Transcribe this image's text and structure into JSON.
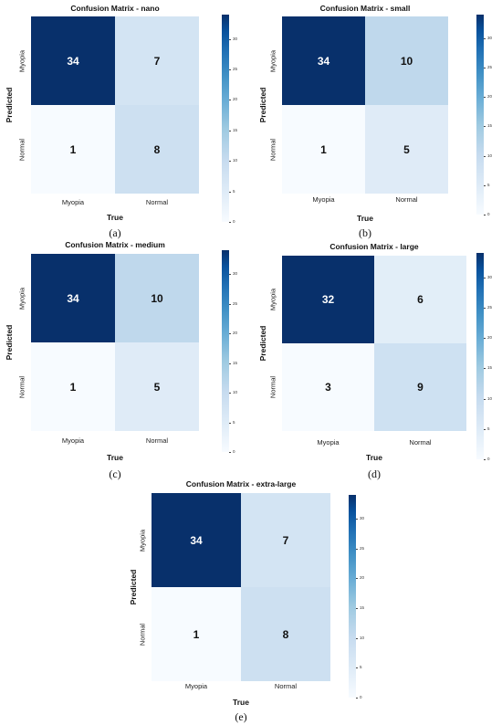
{
  "colorscale": {
    "low": "#f7fbff",
    "high": "#08306b"
  },
  "chart_data": [
    {
      "type": "heatmap",
      "title": "Confusion Matrix - nano",
      "xlabel": "True",
      "ylabel": "Predicted",
      "x_categories": [
        "Myopia",
        "Normal"
      ],
      "y_categories": [
        "Myopia",
        "Normal"
      ],
      "values": [
        [
          34,
          7
        ],
        [
          1,
          8
        ]
      ],
      "colorbar_ticks": [
        0,
        5,
        10,
        15,
        20,
        25,
        30
      ],
      "caption": "(a)"
    },
    {
      "type": "heatmap",
      "title": "Confusion Matrix - small",
      "xlabel": "True",
      "ylabel": "Predicted",
      "x_categories": [
        "Myopia",
        "Normal"
      ],
      "y_categories": [
        "Myopia",
        "Normal"
      ],
      "values": [
        [
          34,
          10
        ],
        [
          1,
          5
        ]
      ],
      "colorbar_ticks": [
        0,
        5,
        10,
        15,
        20,
        25,
        30
      ],
      "caption": "(b)"
    },
    {
      "type": "heatmap",
      "title": "Confusion Matrix - medium",
      "xlabel": "True",
      "ylabel": "Predicted",
      "x_categories": [
        "Myopia",
        "Normal"
      ],
      "y_categories": [
        "Myopia",
        "Normal"
      ],
      "values": [
        [
          34,
          10
        ],
        [
          1,
          5
        ]
      ],
      "colorbar_ticks": [
        0,
        5,
        10,
        15,
        20,
        25,
        30
      ],
      "caption": "(c)"
    },
    {
      "type": "heatmap",
      "title": "Confusion Matrix - large",
      "xlabel": "True",
      "ylabel": "Predicted",
      "x_categories": [
        "Myopia",
        "Normal"
      ],
      "y_categories": [
        "Myopia",
        "Normal"
      ],
      "values": [
        [
          32,
          6
        ],
        [
          3,
          9
        ]
      ],
      "colorbar_ticks": [
        0,
        5,
        10,
        15,
        20,
        25,
        30
      ],
      "caption": "(d)"
    },
    {
      "type": "heatmap",
      "title": "Confusion Matrix - extra-large",
      "xlabel": "True",
      "ylabel": "Predicted",
      "x_categories": [
        "Myopia",
        "Normal"
      ],
      "y_categories": [
        "Myopia",
        "Normal"
      ],
      "values": [
        [
          34,
          7
        ],
        [
          1,
          8
        ]
      ],
      "colorbar_ticks": [
        0,
        5,
        10,
        15,
        20,
        25,
        30
      ],
      "caption": "(e)"
    }
  ]
}
